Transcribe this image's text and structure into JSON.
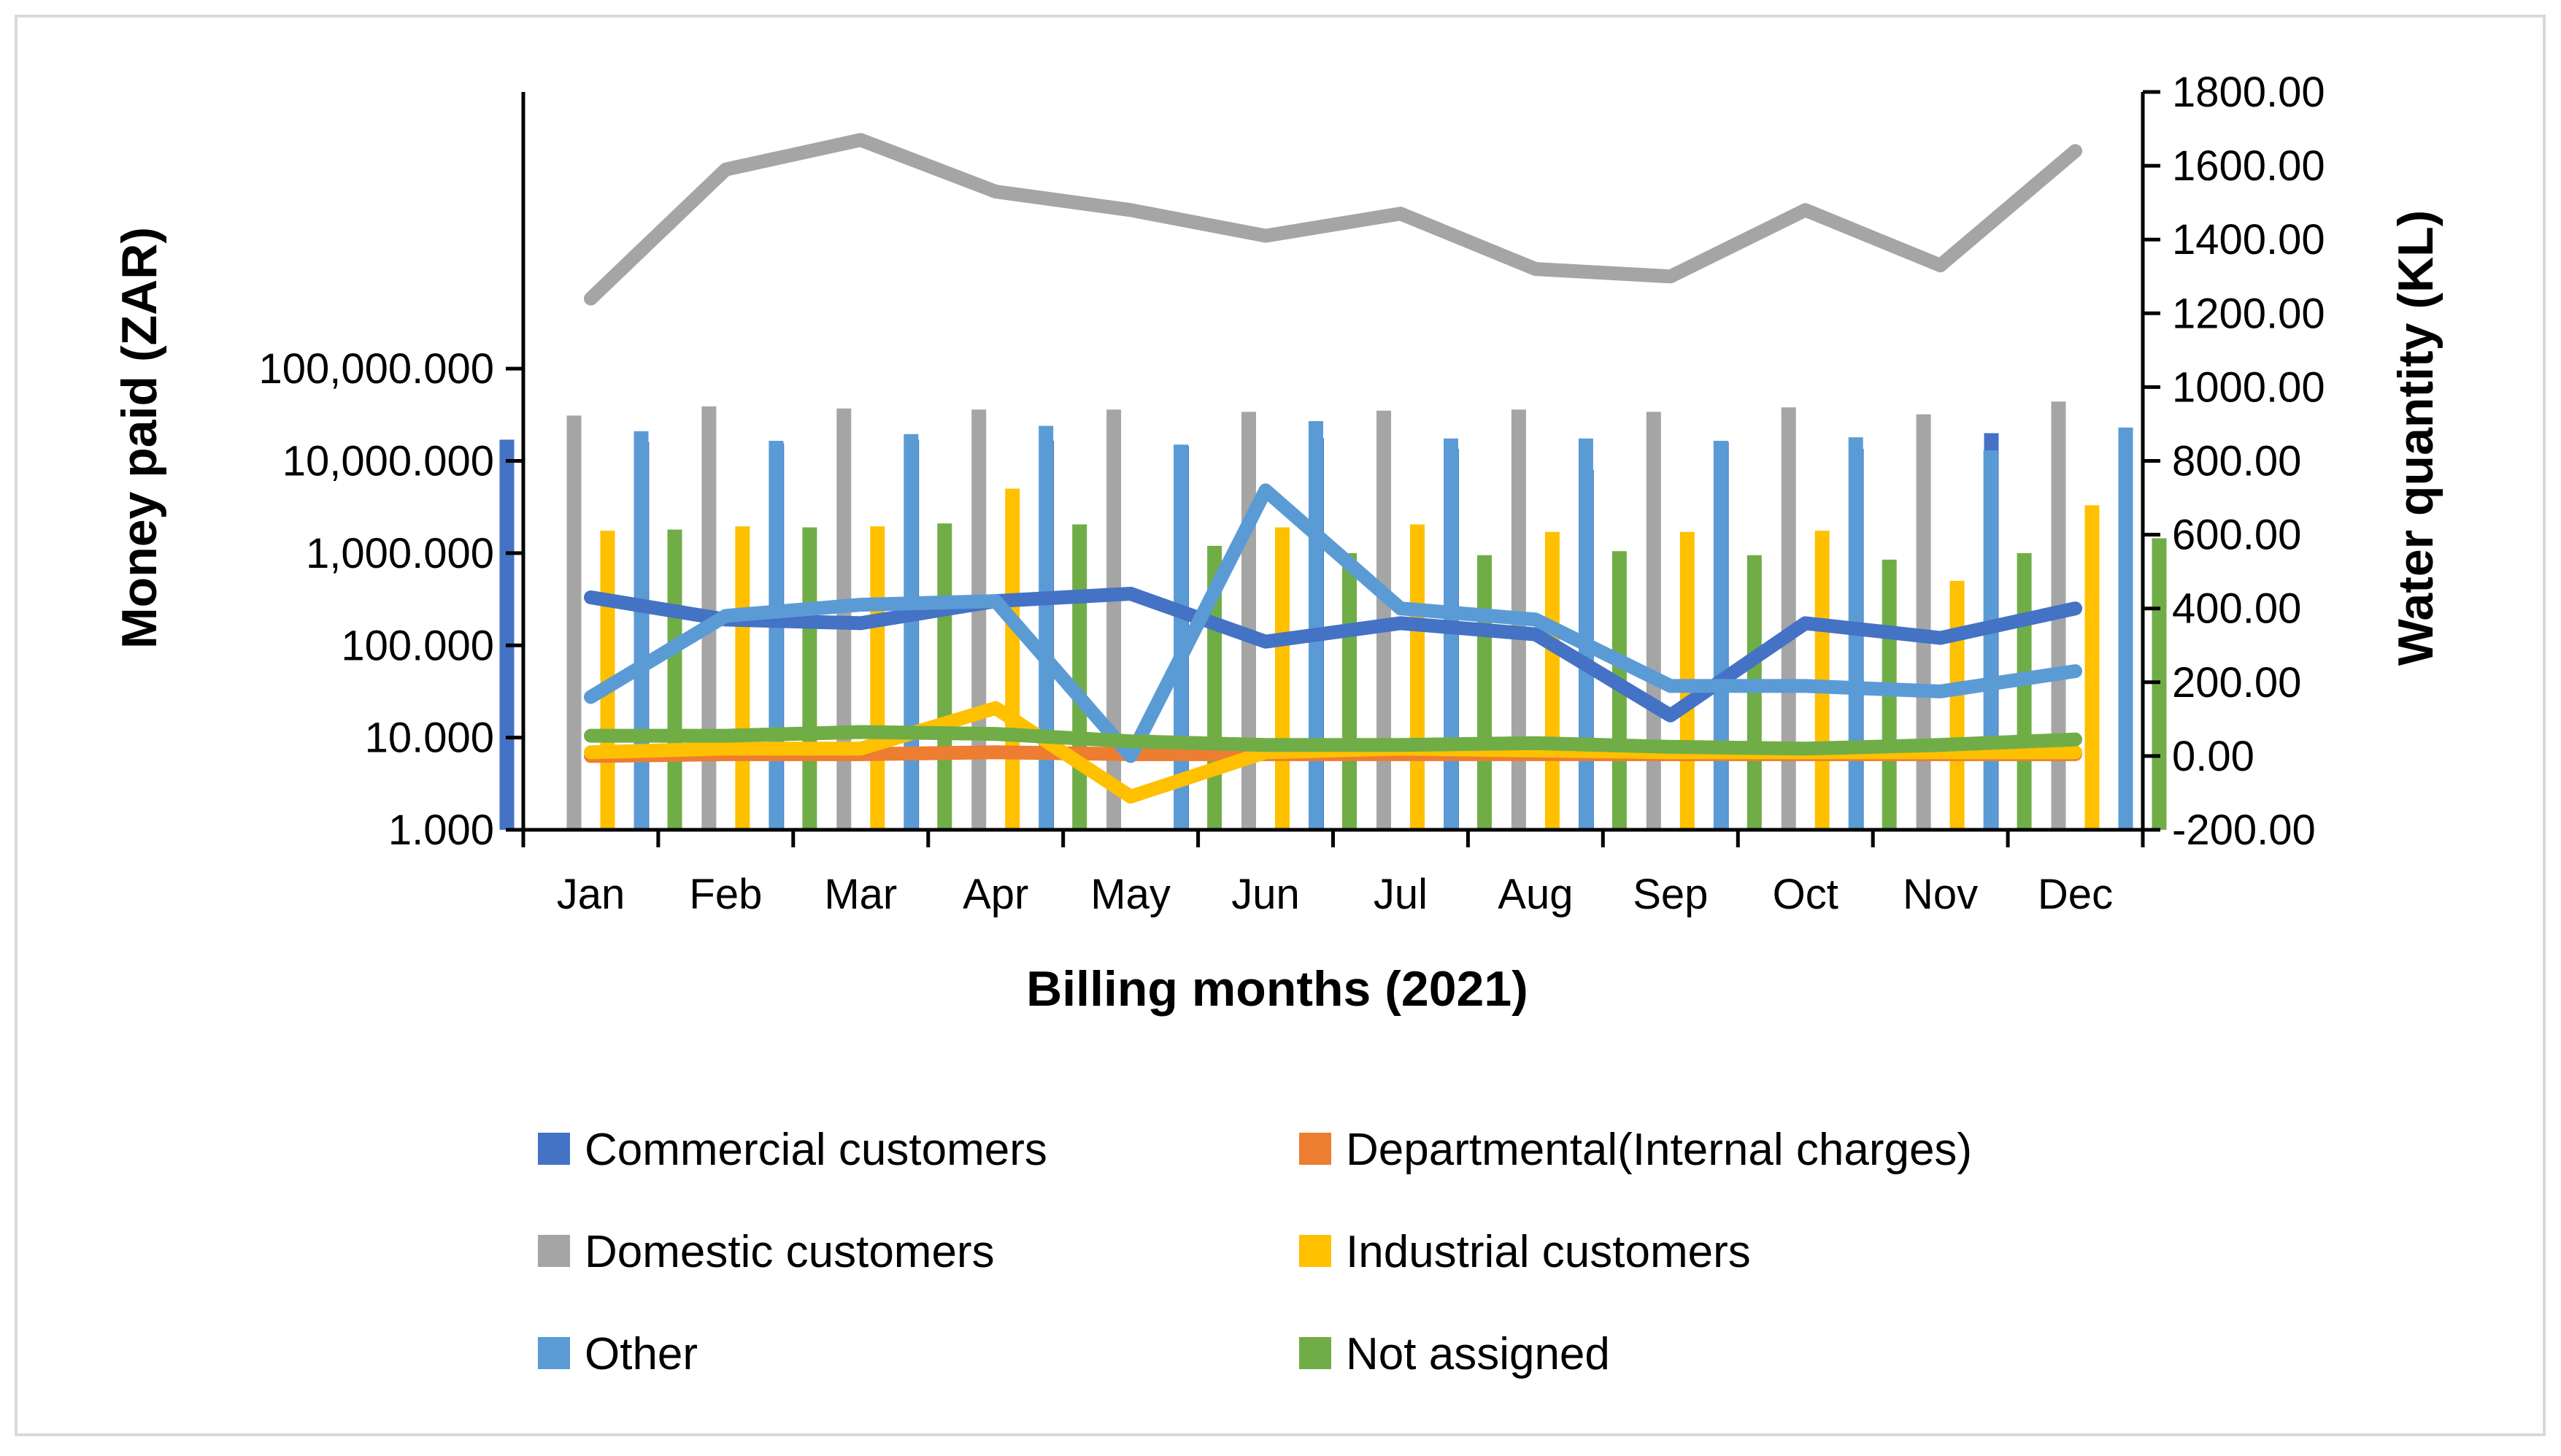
{
  "chart_data": {
    "type": "bar",
    "title": "",
    "xlabel": "Billing months (2021)",
    "ylabel": "Money paid (ZAR)",
    "y2label": "Water quantity (KL)",
    "yscale": "log",
    "ylim": [
      1,
      100000000
    ],
    "y2lim": [
      -200,
      1800
    ],
    "yticks": [
      {
        "value": 1,
        "label": "1.000"
      },
      {
        "value": 10,
        "label": "10.000"
      },
      {
        "value": 100,
        "label": "100.000"
      },
      {
        "value": 1000,
        "label": "1,000.000"
      },
      {
        "value": 10000,
        "label": "10,000.000"
      },
      {
        "value": 100000,
        "label": "100,000.000"
      }
    ],
    "y2ticks": [
      {
        "value": -200,
        "label": "-200.00"
      },
      {
        "value": 0,
        "label": "0.00"
      },
      {
        "value": 200,
        "label": "200.00"
      },
      {
        "value": 400,
        "label": "400.00"
      },
      {
        "value": 600,
        "label": "600.00"
      },
      {
        "value": 800,
        "label": "800.00"
      },
      {
        "value": 1000,
        "label": "1000.00"
      },
      {
        "value": 1200,
        "label": "1200.00"
      },
      {
        "value": 1400,
        "label": "1400.00"
      },
      {
        "value": 1600,
        "label": "1600.00"
      },
      {
        "value": 1800,
        "label": "1800.00"
      }
    ],
    "categories": [
      "Jan",
      "Feb",
      "Mar",
      "Apr",
      "May",
      "Jun",
      "Jul",
      "Aug",
      "Sep",
      "Oct",
      "Nov",
      "Dec"
    ],
    "bar_series": [
      {
        "name": "Commercial customers",
        "color": "#4472C4",
        "values": [
          17000,
          16000,
          15500,
          17000,
          16500,
          14500,
          17500,
          13500,
          8000,
          16000,
          13500,
          20000
        ]
      },
      {
        "name": "Departmental(Internal charges)",
        "color": "#ED7D31",
        "values": [
          0,
          0,
          0,
          0,
          0,
          0,
          0,
          0,
          0,
          0,
          0,
          0
        ]
      },
      {
        "name": "Domestic customers",
        "color": "#A5A5A5",
        "values": [
          31000,
          39000,
          37000,
          36000,
          36000,
          34000,
          35000,
          36000,
          34000,
          38000,
          32000,
          44000
        ]
      },
      {
        "name": "Industrial customers",
        "color": "#FFC000",
        "values": [
          1750,
          1950,
          1950,
          5000,
          0,
          1900,
          2050,
          1700,
          1700,
          1750,
          500,
          3300
        ]
      },
      {
        "name": "Other",
        "color": "#5B9BD5",
        "values": [
          21000,
          16500,
          19500,
          24000,
          15000,
          27000,
          17500,
          17500,
          16500,
          18000,
          13000,
          23000
        ]
      },
      {
        "name": "Not assigned",
        "color": "#70AD47",
        "values": [
          1800,
          1900,
          2100,
          2050,
          1200,
          1000,
          950,
          1050,
          950,
          850,
          1000,
          1450
        ]
      }
    ],
    "line_series": [
      {
        "name": "Commercial customers",
        "color": "#4472C4",
        "values": [
          430,
          370,
          360,
          420,
          440,
          310,
          360,
          330,
          110,
          360,
          320,
          400
        ]
      },
      {
        "name": "Departmental(Internal charges)",
        "color": "#ED7D31",
        "values": [
          0,
          5,
          5,
          10,
          5,
          5,
          5,
          5,
          5,
          5,
          5,
          5
        ]
      },
      {
        "name": "Domestic customers",
        "color": "#A5A5A5",
        "values": [
          1240,
          1590,
          1670,
          1530,
          1480,
          1410,
          1470,
          1320,
          1300,
          1480,
          1330,
          1640
        ]
      },
      {
        "name": "Industrial customers",
        "color": "#FFC000",
        "values": [
          10,
          20,
          20,
          130,
          -110,
          10,
          20,
          15,
          10,
          10,
          10,
          10
        ]
      },
      {
        "name": "Other",
        "color": "#5B9BD5",
        "values": [
          160,
          380,
          410,
          420,
          0,
          720,
          400,
          370,
          190,
          190,
          175,
          230
        ]
      },
      {
        "name": "Not assigned",
        "color": "#70AD47",
        "values": [
          55,
          55,
          65,
          60,
          40,
          30,
          30,
          35,
          25,
          20,
          30,
          45
        ]
      }
    ],
    "legend": {
      "placement": "bottom",
      "entries": [
        {
          "label": "Commercial customers",
          "color": "#4472C4"
        },
        {
          "label": "Departmental(Internal charges)",
          "color": "#ED7D31"
        },
        {
          "label": "Domestic customers",
          "color": "#A5A5A5"
        },
        {
          "label": "Industrial customers",
          "color": "#FFC000"
        },
        {
          "label": "Other",
          "color": "#5B9BD5"
        },
        {
          "label": "Not assigned",
          "color": "#70AD47"
        }
      ]
    }
  }
}
